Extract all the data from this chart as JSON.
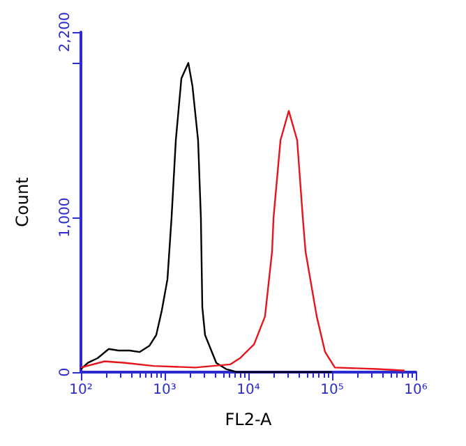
{
  "chart_data": {
    "type": "line",
    "xlabel": "FL2-A",
    "ylabel": "Count",
    "log": "x",
    "xlim": [
      100,
      1000000
    ],
    "xticks": [
      {
        "value": 100,
        "label": "10²"
      },
      {
        "value": 1000,
        "label": "10³"
      },
      {
        "value": 10000,
        "label": "10⁴"
      },
      {
        "value": 100000,
        "label": "10⁵"
      },
      {
        "value": 1000000,
        "label": "10⁶"
      }
    ],
    "ylim": [
      0,
      2200
    ],
    "yticks": [
      0,
      {
        "value": 1000,
        "label": "1,000"
      },
      {
        "value": 2000,
        "label": null
      },
      {
        "value": 2200,
        "label": "2,200"
      }
    ],
    "grid": false,
    "marker": "none",
    "line_style": "solid",
    "series": [
      {
        "color": "#000000",
        "x": [
          100,
          121,
          158,
          215,
          282,
          383,
          501,
          656,
          794,
          926,
          1080,
          1210,
          1360,
          1585,
          1920,
          2150,
          2510,
          2710,
          2820,
          3040,
          4140,
          5410,
          7360,
          100000
        ],
        "values": [
          20,
          60,
          90,
          150,
          140,
          140,
          130,
          170,
          240,
          400,
          600,
          1000,
          1500,
          1900,
          2000,
          1850,
          1500,
          1000,
          420,
          240,
          60,
          20,
          0,
          0
        ]
      },
      {
        "color": "#e8141c",
        "x": [
          100,
          192,
          341,
          736,
          2330,
          6070,
          7940,
          11700,
          15800,
          19200,
          20000,
          24200,
          30400,
          38300,
          44700,
          48200,
          65600,
          82600,
          108000,
          341000,
          736000
        ],
        "values": [
          30,
          70,
          60,
          40,
          30,
          50,
          90,
          180,
          360,
          780,
          1000,
          1500,
          1690,
          1500,
          1000,
          780,
          360,
          130,
          30,
          20,
          10
        ]
      }
    ]
  }
}
